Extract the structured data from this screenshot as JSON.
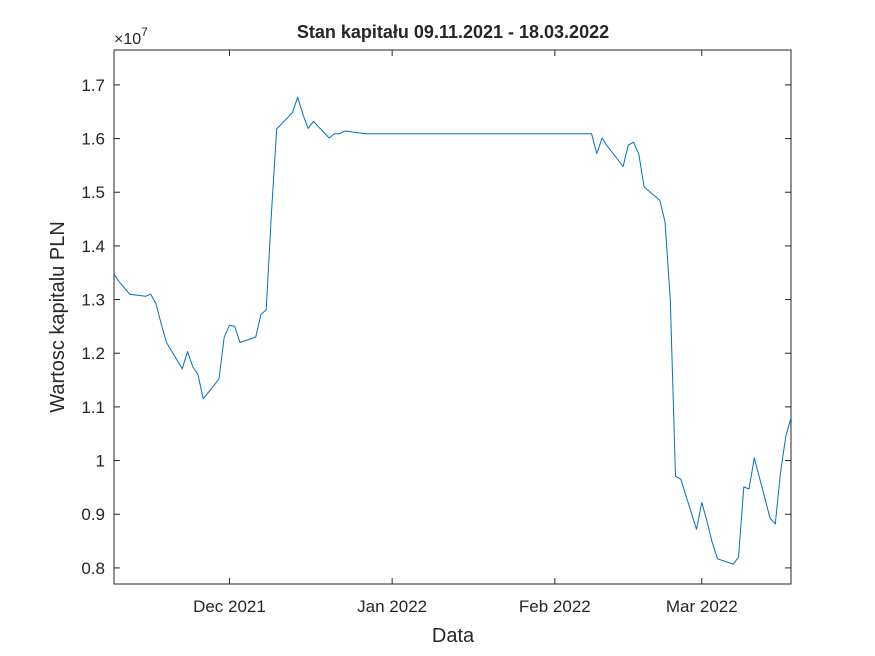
{
  "chart_data": {
    "type": "line",
    "title": "Stan kapitału 09.11.2021 - 18.03.2022",
    "xlabel": "Data",
    "ylabel": "Wartosc kapitalu PLN",
    "y_exponent_label": "×10",
    "y_exponent_power": "7",
    "xlim": [
      "2021-11-09",
      "2022-03-18"
    ],
    "ylim": [
      0.77,
      1.765
    ],
    "y_multiplier": 10000000,
    "grid": false,
    "legend": "none",
    "line_color": "#0072BD",
    "x_ticks": [
      {
        "date": "2021-12-01",
        "label": "Dec 2021"
      },
      {
        "date": "2022-01-01",
        "label": "Jan 2022"
      },
      {
        "date": "2022-02-01",
        "label": "Feb 2022"
      },
      {
        "date": "2022-03-01",
        "label": "Mar 2022"
      }
    ],
    "y_ticks": [
      {
        "value": 0.8,
        "label": "0.8"
      },
      {
        "value": 0.9,
        "label": "0.9"
      },
      {
        "value": 1.0,
        "label": "1"
      },
      {
        "value": 1.1,
        "label": "1.1"
      },
      {
        "value": 1.2,
        "label": "1.2"
      },
      {
        "value": 1.3,
        "label": "1.3"
      },
      {
        "value": 1.4,
        "label": "1.4"
      },
      {
        "value": 1.5,
        "label": "1.5"
      },
      {
        "value": 1.6,
        "label": "1.6"
      },
      {
        "value": 1.7,
        "label": "1.7"
      }
    ],
    "series": [
      {
        "x": [
          "2021-11-09",
          "2021-11-10",
          "2021-11-12",
          "2021-11-15",
          "2021-11-16",
          "2021-11-17",
          "2021-11-18",
          "2021-11-19",
          "2021-11-22",
          "2021-11-23",
          "2021-11-24",
          "2021-11-25",
          "2021-11-26",
          "2021-11-29",
          "2021-11-30",
          "2021-12-01",
          "2021-12-02",
          "2021-12-03",
          "2021-12-06",
          "2021-12-07",
          "2021-12-08",
          "2021-12-09",
          "2021-12-10",
          "2021-12-13",
          "2021-12-14",
          "2021-12-15",
          "2021-12-16",
          "2021-12-17",
          "2021-12-20",
          "2021-12-21",
          "2021-12-22",
          "2021-12-23",
          "2021-12-27",
          "2022-01-31",
          "2022-02-08",
          "2022-02-09",
          "2022-02-10",
          "2022-02-11",
          "2022-02-14",
          "2022-02-15",
          "2022-02-16",
          "2022-02-17",
          "2022-02-18",
          "2022-02-21",
          "2022-02-22",
          "2022-02-23",
          "2022-02-24",
          "2022-02-25",
          "2022-02-28",
          "2022-03-01",
          "2022-03-02",
          "2022-03-03",
          "2022-03-04",
          "2022-03-07",
          "2022-03-08",
          "2022-03-09",
          "2022-03-10",
          "2022-03-11",
          "2022-03-14",
          "2022-03-15",
          "2022-03-16",
          "2022-03-17",
          "2022-03-18"
        ],
        "y": [
          1.347,
          1.333,
          1.31,
          1.306,
          1.31,
          1.292,
          1.255,
          1.22,
          1.171,
          1.203,
          1.175,
          1.16,
          1.115,
          1.152,
          1.23,
          1.252,
          1.25,
          1.22,
          1.23,
          1.272,
          1.281,
          1.46,
          1.618,
          1.648,
          1.677,
          1.645,
          1.619,
          1.632,
          1.601,
          1.609,
          1.609,
          1.614,
          1.609,
          1.609,
          1.609,
          1.572,
          1.601,
          1.586,
          1.548,
          1.588,
          1.593,
          1.571,
          1.51,
          1.485,
          1.445,
          1.3,
          0.971,
          0.965,
          0.872,
          0.922,
          0.887,
          0.847,
          0.817,
          0.807,
          0.82,
          0.951,
          0.947,
          1.005,
          0.893,
          0.882,
          0.978,
          1.045,
          1.08
        ]
      }
    ]
  }
}
